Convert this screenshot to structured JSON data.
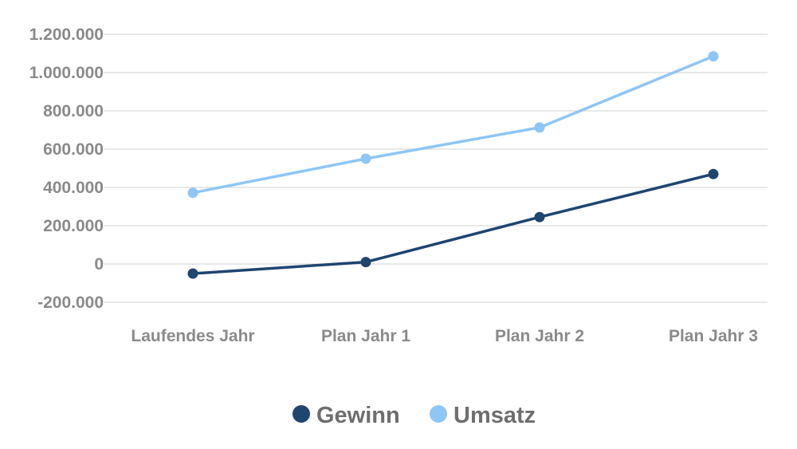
{
  "chart_data": {
    "type": "line",
    "categories": [
      "Laufendes Jahr",
      "Plan Jahr 1",
      "Plan Jahr 2",
      "Plan Jahr 3"
    ],
    "y_ticks": [
      "1.200.000",
      "1.000.000",
      "800.000",
      "600.000",
      "400.000",
      "200.000",
      "0",
      "-200.000"
    ],
    "ylim": [
      -200000,
      1200000
    ],
    "y_tick_step": 200000,
    "grid": true,
    "legend_position": "bottom-center",
    "series": [
      {
        "name": "Gewinn",
        "color": "#1f4571",
        "values": [
          -50000,
          10000,
          245000,
          470000
        ]
      },
      {
        "name": "Umsatz",
        "color": "#8ec6f5",
        "values": [
          372000,
          550000,
          713000,
          1085000
        ]
      }
    ]
  }
}
